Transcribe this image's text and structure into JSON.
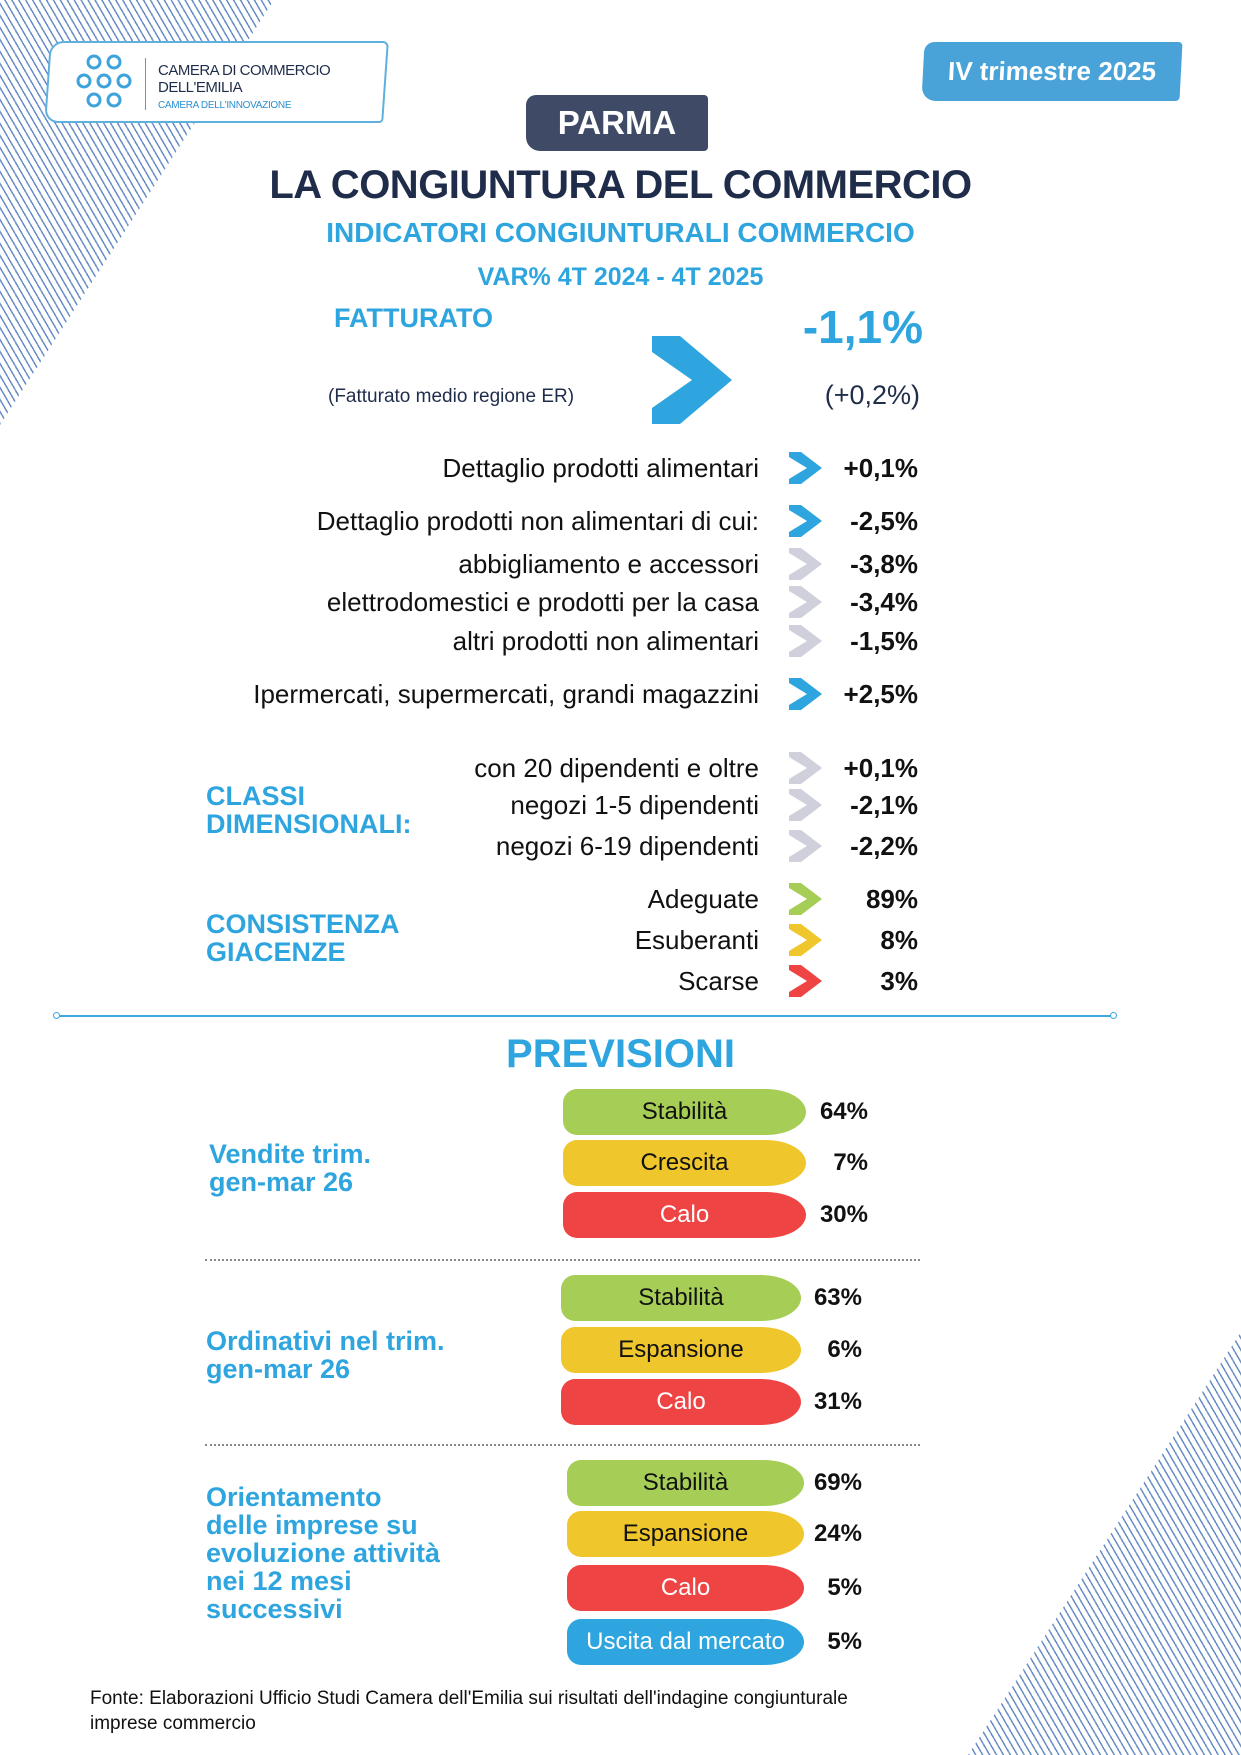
{
  "header": {
    "logo": {
      "line1": "CAMERA DI COMMERCIO",
      "line2": "DELL'EMILIA",
      "line3": "CAMERA DELL'INNOVAZIONE"
    },
    "period": "IV trimestre 2025",
    "city": "PARMA",
    "title": "LA CONGIUNTURA DEL COMMERCIO",
    "subtitle": "INDICATORI CONGIUNTURALI COMMERCIO",
    "var_label": "VAR% 4T 2024 - 4T 2025"
  },
  "fatturato": {
    "label": "FATTURATO",
    "value": "-1,1%",
    "region_label": "(Fatturato medio regione ER)",
    "region_value": "(+0,2%)",
    "arrow_color": "#2ea5de"
  },
  "colors": {
    "blue": "#2ea5de",
    "grey": "#cfd0dc",
    "green": "#a6cd56",
    "yellow": "#efc62b",
    "red": "#ef4444",
    "navy": "#1f2d4a"
  },
  "rows": [
    {
      "label": "Dettaglio prodotti alimentari",
      "value": "+0,1%",
      "arrow": "blue"
    },
    {
      "label": "Dettaglio prodotti non alimentari di cui:",
      "value": "-2,5%",
      "arrow": "blue"
    },
    {
      "label": "abbigliamento e accessori",
      "value": "-3,8%",
      "arrow": "grey"
    },
    {
      "label": "elettrodomestici e prodotti per la casa",
      "value": "-3,4%",
      "arrow": "grey"
    },
    {
      "label": "altri prodotti non alimentari",
      "value": "-1,5%",
      "arrow": "grey"
    },
    {
      "label": "Ipermercati, supermercati, grandi magazzini",
      "value": "+2,5%",
      "arrow": "blue"
    },
    {
      "label": "con 20 dipendenti e oltre",
      "value": "+0,1%",
      "arrow": "grey"
    },
    {
      "label": "negozi 1-5 dipendenti",
      "value": "-2,1%",
      "arrow": "grey"
    },
    {
      "label": "negozi 6-19 dipendenti",
      "value": "-2,2%",
      "arrow": "grey"
    },
    {
      "label": "Adeguate",
      "value": "89%",
      "arrow": "green"
    },
    {
      "label": "Esuberanti",
      "value": "8%",
      "arrow": "yellow"
    },
    {
      "label": "Scarse",
      "value": "3%",
      "arrow": "red"
    }
  ],
  "sections": {
    "classi_1": "CLASSI",
    "classi_2": "DIMENSIONALI:",
    "giacenze_1": "CONSISTENZA",
    "giacenze_2": "GIACENZE"
  },
  "previsioni": {
    "title": "PREVISIONI",
    "groups": [
      {
        "label": [
          "Vendite trim.",
          "gen-mar 26"
        ],
        "items": [
          {
            "label": "Stabilità",
            "value": "64%",
            "color": "green"
          },
          {
            "label": "Crescita",
            "value": "7%",
            "color": "yellow"
          },
          {
            "label": "Calo",
            "value": "30%",
            "color": "red"
          }
        ]
      },
      {
        "label": [
          "Ordinativi nel trim.",
          "gen-mar 26"
        ],
        "items": [
          {
            "label": "Stabilità",
            "value": "63%",
            "color": "green"
          },
          {
            "label": "Espansione",
            "value": "6%",
            "color": "yellow"
          },
          {
            "label": "Calo",
            "value": "31%",
            "color": "red"
          }
        ]
      },
      {
        "label": [
          "Orientamento",
          "delle imprese su",
          "evoluzione attività",
          "nei 12 mesi",
          "successivi"
        ],
        "items": [
          {
            "label": "Stabilità",
            "value": "69%",
            "color": "green"
          },
          {
            "label": "Espansione",
            "value": "24%",
            "color": "yellow"
          },
          {
            "label": "Calo",
            "value": "5%",
            "color": "red"
          },
          {
            "label": "Uscita dal mercato",
            "value": "5%",
            "color": "blue"
          }
        ]
      }
    ]
  },
  "footer": {
    "source_1": "Fonte: Elaborazioni Ufficio Studi Camera dell'Emilia sui risultati dell'indagine congiunturale",
    "source_2": "imprese commercio"
  }
}
